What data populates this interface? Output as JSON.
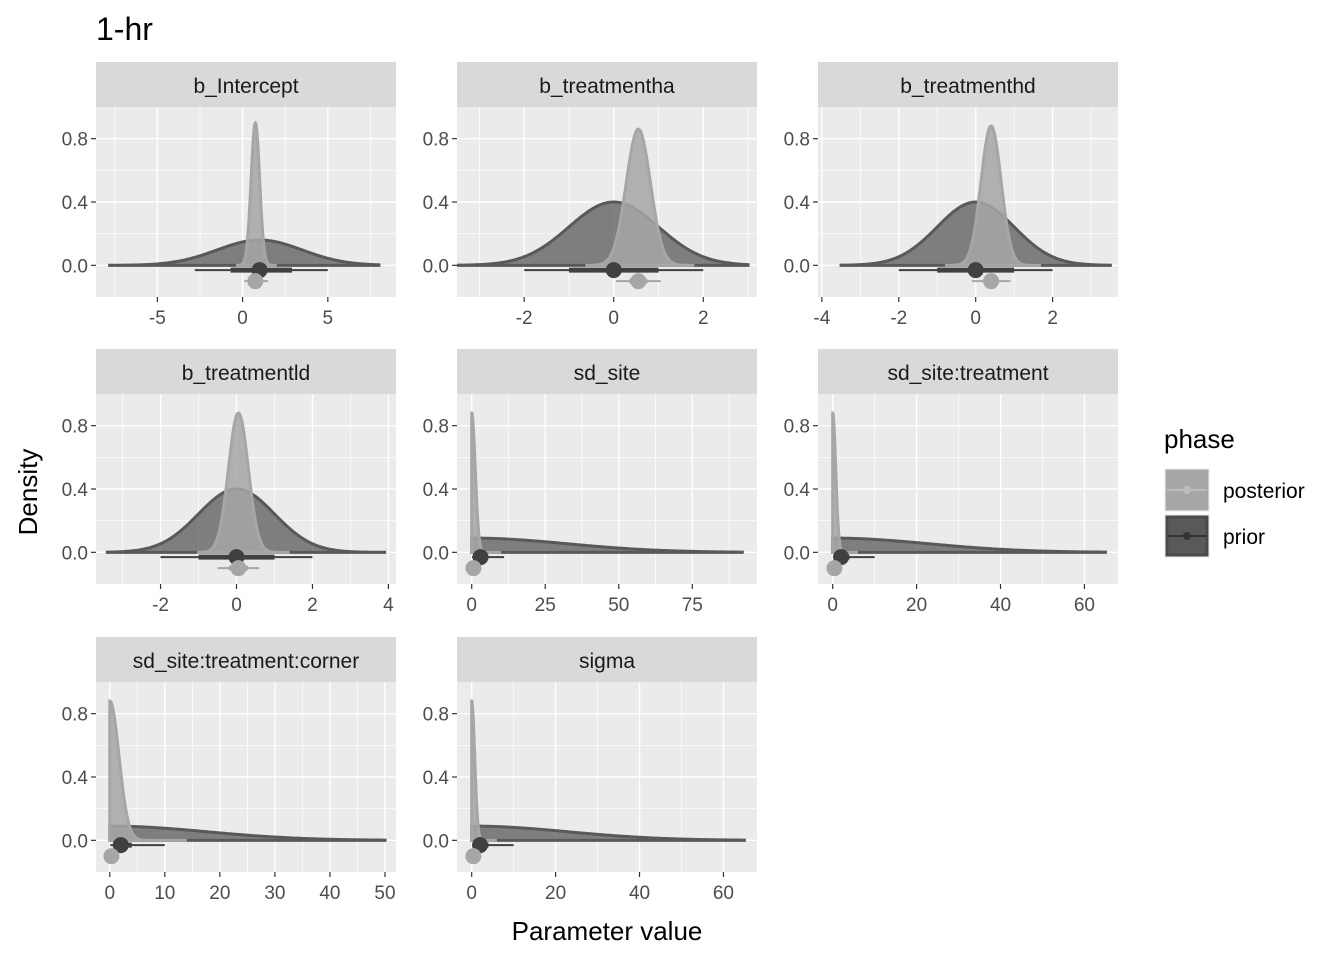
{
  "chart_data": {
    "type": "density-facets",
    "title": "1-hr",
    "xlabel": "Parameter value",
    "ylabel": "Density",
    "y_ticks": [
      0.0,
      0.4,
      0.8
    ],
    "y_tick_labels": [
      "0.0",
      "0.4",
      "0.8"
    ],
    "ylim": [
      -0.2,
      1.0
    ],
    "legend": {
      "title": "phase",
      "position": "right",
      "entries": [
        {
          "name": "posterior",
          "color": "#a6a6a6"
        },
        {
          "name": "prior",
          "color": "#595959"
        }
      ]
    },
    "colors": {
      "panel_bg": "#ebebeb",
      "strip_bg": "#d9d9d9",
      "grid": "#ffffff",
      "posterior": "#a6a6a6",
      "prior": "#595959"
    },
    "panels": [
      {
        "label": "b_Intercept",
        "kind": "normal",
        "xlim": [
          -8.6,
          9.0
        ],
        "x_ticks": [
          -5,
          0,
          5
        ],
        "x_tick_labels": [
          "-5",
          "0",
          "5"
        ],
        "prior": {
          "mean": 1.0,
          "sd": 2.5,
          "range": [
            -7.8,
            8.0
          ],
          "interval_outer": [
            -2.8,
            5.0
          ],
          "interval_inner": [
            -0.7,
            2.9
          ]
        },
        "posterior": {
          "mean": 0.75,
          "sd": 0.25,
          "peak": 0.9,
          "range": [
            -0.3,
            2.0
          ],
          "interval_outer": [
            0.1,
            1.5
          ],
          "interval_inner": [
            0.45,
            1.05
          ]
        }
      },
      {
        "label": "b_treatmentha",
        "kind": "normal",
        "xlim": [
          -3.5,
          3.2
        ],
        "x_ticks": [
          -2,
          0,
          2
        ],
        "x_tick_labels": [
          "-2",
          "0",
          "2"
        ],
        "prior": {
          "mean": 0.0,
          "sd": 1.0,
          "range": [
            -3.5,
            3.0
          ],
          "interval_outer": [
            -2.0,
            2.0
          ],
          "interval_inner": [
            -1.0,
            1.0
          ]
        },
        "posterior": {
          "mean": 0.55,
          "sd": 0.27,
          "peak": 0.86,
          "range": [
            -0.6,
            1.8
          ],
          "interval_outer": [
            0.05,
            1.05
          ],
          "interval_inner": [
            0.35,
            0.75
          ]
        }
      },
      {
        "label": "b_treatmenthd",
        "kind": "normal",
        "xlim": [
          -4.1,
          3.7
        ],
        "x_ticks": [
          -4,
          -2,
          0,
          2
        ],
        "x_tick_labels": [
          "-4",
          "-2",
          "0",
          "2"
        ],
        "prior": {
          "mean": 0.0,
          "sd": 1.0,
          "range": [
            -3.5,
            3.5
          ],
          "interval_outer": [
            -2.0,
            2.0
          ],
          "interval_inner": [
            -1.0,
            1.0
          ]
        },
        "posterior": {
          "mean": 0.4,
          "sd": 0.26,
          "peak": 0.88,
          "range": [
            -0.8,
            1.7
          ],
          "interval_outer": [
            -0.1,
            0.9
          ],
          "interval_inner": [
            0.2,
            0.6
          ]
        }
      },
      {
        "label": "b_treatmentld",
        "kind": "normal",
        "xlim": [
          -3.7,
          4.2
        ],
        "x_ticks": [
          -2,
          0,
          2,
          4
        ],
        "x_tick_labels": [
          "-2",
          "0",
          "2",
          "4"
        ],
        "prior": {
          "mean": 0.0,
          "sd": 1.0,
          "range": [
            -3.4,
            3.9
          ],
          "interval_outer": [
            -2.0,
            2.0
          ],
          "interval_inner": [
            -1.0,
            1.0
          ]
        },
        "posterior": {
          "mean": 0.05,
          "sd": 0.26,
          "peak": 0.88,
          "range": [
            -1.0,
            1.4
          ],
          "interval_outer": [
            -0.5,
            0.6
          ],
          "interval_inner": [
            -0.2,
            0.3
          ]
        }
      },
      {
        "label": "sd_site",
        "kind": "halfnormal",
        "xlim": [
          -5,
          97
        ],
        "x_ticks": [
          0,
          25,
          50,
          75
        ],
        "x_tick_labels": [
          "0",
          "25",
          "50",
          "75"
        ],
        "prior": {
          "point": 3,
          "interval_outer": [
            0.1,
            11
          ],
          "interval_inner": [
            1,
            5
          ],
          "range": [
            0,
            92
          ],
          "tail_height": 0.004
        },
        "posterior": {
          "point": 0.6,
          "interval_outer": [
            0,
            2
          ],
          "interval_inner": [
            0.2,
            1.2
          ],
          "peak": 0.88,
          "range": [
            0,
            10
          ]
        }
      },
      {
        "label": "sd_site:treatment",
        "kind": "halfnormal",
        "xlim": [
          -3.5,
          68
        ],
        "x_ticks": [
          0,
          20,
          40,
          60
        ],
        "x_tick_labels": [
          "0",
          "20",
          "40",
          "60"
        ],
        "prior": {
          "point": 2,
          "interval_outer": [
            0.1,
            10
          ],
          "interval_inner": [
            0.8,
            4
          ],
          "range": [
            0,
            65
          ],
          "tail_height": 0.004
        },
        "posterior": {
          "point": 0.4,
          "interval_outer": [
            0,
            1.5
          ],
          "interval_inner": [
            0.1,
            0.9
          ],
          "peak": 0.88,
          "range": [
            0,
            6
          ]
        }
      },
      {
        "label": "sd_site:treatment:corner",
        "kind": "halfnormal",
        "xlim": [
          -2.5,
          52
        ],
        "x_ticks": [
          0,
          10,
          20,
          30,
          40,
          50
        ],
        "x_tick_labels": [
          "0",
          "10",
          "20",
          "30",
          "40",
          "50"
        ],
        "prior": {
          "point": 2,
          "interval_outer": [
            0.1,
            10
          ],
          "interval_inner": [
            0.8,
            4
          ],
          "range": [
            0,
            50
          ],
          "tail_height": 0.004
        },
        "posterior": {
          "point": 0.3,
          "interval_outer": [
            0,
            1.5
          ],
          "interval_inner": [
            0.1,
            0.8
          ],
          "peak": 0.88,
          "range": [
            0,
            14
          ]
        }
      },
      {
        "label": "sigma",
        "kind": "halfnormal",
        "xlim": [
          -3.5,
          68
        ],
        "x_ticks": [
          0,
          20,
          40,
          60
        ],
        "x_tick_labels": [
          "0",
          "20",
          "40",
          "60"
        ],
        "prior": {
          "point": 2,
          "interval_outer": [
            0.1,
            10
          ],
          "interval_inner": [
            0.8,
            4
          ],
          "range": [
            0,
            65
          ],
          "tail_height": 0.004
        },
        "posterior": {
          "point": 0.4,
          "interval_outer": [
            0,
            1.5
          ],
          "interval_inner": [
            0.1,
            0.9
          ],
          "peak": 0.88,
          "range": [
            0,
            6
          ]
        }
      }
    ]
  }
}
